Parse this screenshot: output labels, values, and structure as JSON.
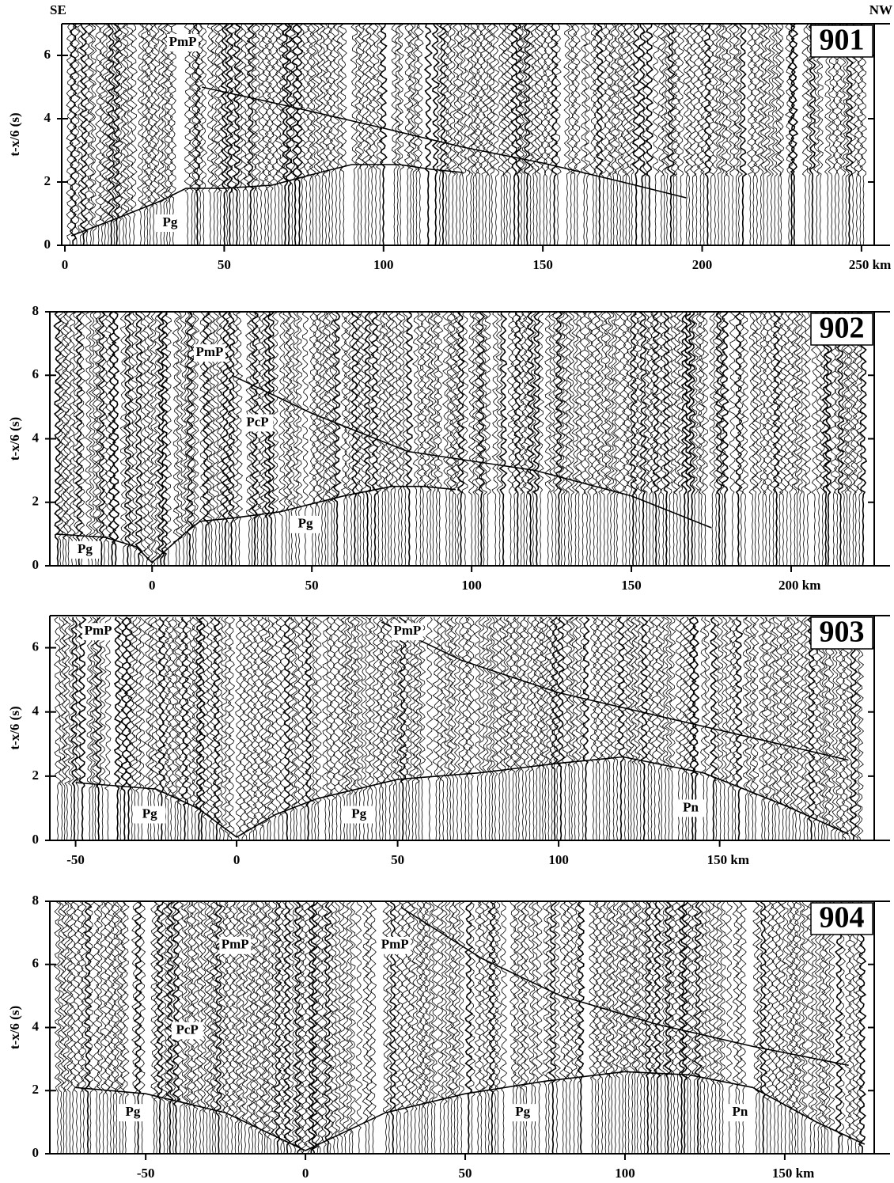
{
  "chart_data": [
    {
      "type": "seismic",
      "panel_label": "901",
      "left_label": "SE",
      "right_label": "NW",
      "ylabel": "t-x/6 (s)",
      "xlim": [
        -1,
        254
      ],
      "ylim": [
        0,
        7
      ],
      "xticks": [
        0,
        50,
        100,
        150,
        200,
        {
          "value": 250,
          "label": "250 km"
        }
      ],
      "yticks": [
        0,
        2,
        4,
        6
      ],
      "lines": [
        {
          "x": [
            2,
            15,
            30,
            38,
            50,
            65,
            80,
            90,
            105,
            115,
            125
          ],
          "y": [
            0.3,
            0.8,
            1.4,
            1.8,
            1.8,
            1.9,
            2.3,
            2.55,
            2.55,
            2.4,
            2.3
          ]
        },
        {
          "x": [
            43,
            70,
            100,
            125,
            150,
            175,
            195
          ],
          "y": [
            5.0,
            4.4,
            3.7,
            3.1,
            2.6,
            2.0,
            1.5
          ]
        }
      ],
      "annotations": [
        {
          "text": "PmP",
          "x": 37,
          "y": 6.4
        },
        {
          "text": "Pg",
          "x": 33,
          "y": 0.7
        }
      ]
    },
    {
      "type": "seismic",
      "panel_label": "902",
      "ylabel": "t-x/6 (s)",
      "xlim": [
        -32,
        226
      ],
      "ylim": [
        0,
        8
      ],
      "xticks": [
        0,
        50,
        100,
        150,
        {
          "value": 200,
          "label": "200 km"
        }
      ],
      "yticks": [
        0,
        2,
        4,
        6,
        8
      ],
      "lines": [
        {
          "x": [
            -30,
            -15,
            -5,
            0,
            10,
            15,
            25,
            40,
            60,
            75,
            85,
            95
          ],
          "y": [
            1.0,
            0.9,
            0.6,
            0.1,
            1.0,
            1.4,
            1.5,
            1.7,
            2.2,
            2.5,
            2.5,
            2.4
          ]
        },
        {
          "x": [
            25,
            50,
            80,
            120,
            150,
            175
          ],
          "y": [
            6.0,
            4.8,
            3.6,
            3.0,
            2.2,
            1.2
          ]
        }
      ],
      "annotations": [
        {
          "text": "PmP",
          "x": 18,
          "y": 6.7
        },
        {
          "text": "PcP",
          "x": 33,
          "y": 4.5
        },
        {
          "text": "Pg",
          "x": -21,
          "y": 0.5
        },
        {
          "text": "Pg",
          "x": 48,
          "y": 1.3
        }
      ]
    },
    {
      "type": "seismic",
      "panel_label": "903",
      "ylabel": "t-x/6 (s)",
      "xlim": [
        -58,
        198
      ],
      "ylim": [
        0,
        7
      ],
      "xticks": [
        -50,
        0,
        50,
        100,
        {
          "value": 150,
          "label": "150 km"
        }
      ],
      "yticks": [
        0,
        2,
        4,
        6
      ],
      "lines": [
        {
          "x": [
            -50,
            -25,
            -12,
            0,
            12,
            25,
            50,
            75,
            100,
            120,
            145,
            170,
            190
          ],
          "y": [
            1.8,
            1.6,
            1.0,
            0.1,
            0.8,
            1.3,
            1.9,
            2.1,
            2.4,
            2.6,
            2.1,
            1.1,
            0.2
          ]
        },
        {
          "x": [
            45,
            70,
            100,
            130,
            160,
            190
          ],
          "y": [
            6.8,
            5.6,
            4.6,
            3.9,
            3.2,
            2.5
          ]
        }
      ],
      "annotations": [
        {
          "text": "PmP",
          "x": -43,
          "y": 6.5
        },
        {
          "text": "PmP",
          "x": 53,
          "y": 6.5
        },
        {
          "text": "Pg",
          "x": -27,
          "y": 0.8
        },
        {
          "text": "Pg",
          "x": 38,
          "y": 0.8
        },
        {
          "text": "Pn",
          "x": 141,
          "y": 1.0
        }
      ]
    },
    {
      "type": "seismic",
      "panel_label": "904",
      "ylabel": "t-x/6 (s)",
      "xlim": [
        -80,
        178
      ],
      "ylim": [
        0,
        8
      ],
      "xticks": [
        -50,
        0,
        50,
        100,
        {
          "value": 150,
          "label": "150 km"
        }
      ],
      "yticks": [
        0,
        2,
        4,
        6,
        8
      ],
      "lines": [
        {
          "x": [
            -72,
            -50,
            -25,
            0,
            25,
            50,
            75,
            100,
            120,
            140,
            160,
            175
          ],
          "y": [
            2.1,
            1.9,
            1.3,
            0.1,
            1.3,
            1.9,
            2.3,
            2.6,
            2.5,
            2.1,
            1.0,
            0.3
          ]
        },
        {
          "x": [
            30,
            55,
            80,
            110,
            140,
            170
          ],
          "y": [
            7.8,
            6.2,
            5.0,
            4.1,
            3.4,
            2.8
          ]
        }
      ],
      "annotations": [
        {
          "text": "PmP",
          "x": -22,
          "y": 6.6
        },
        {
          "text": "PmP",
          "x": 28,
          "y": 6.6
        },
        {
          "text": "PcP",
          "x": -37,
          "y": 3.9
        },
        {
          "text": "Pg",
          "x": -54,
          "y": 1.3
        },
        {
          "text": "Pg",
          "x": 68,
          "y": 1.3
        },
        {
          "text": "Pn",
          "x": 136,
          "y": 1.3
        }
      ]
    }
  ]
}
